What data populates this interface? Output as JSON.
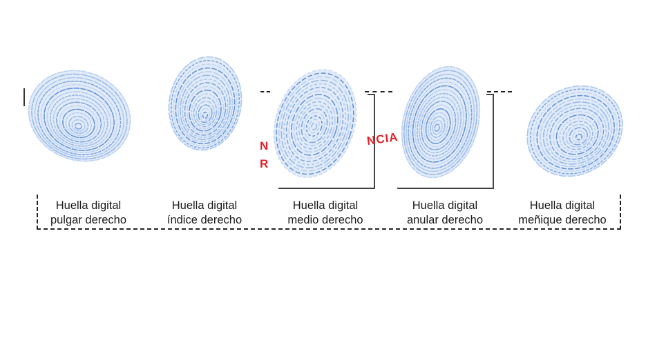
{
  "fingerprints": [
    {
      "line1": "Huella digital",
      "line2": "pulgar derecho"
    },
    {
      "line1": "Huella digital",
      "line2": "índice derecho"
    },
    {
      "line1": "Huella digital",
      "line2": "medio derecho"
    },
    {
      "line1": "Huella digital",
      "line2": "anular derecho"
    },
    {
      "line1": "Huella digital",
      "line2": "meñique derecho"
    }
  ],
  "stamp": {
    "fragment_a": "N",
    "fragment_b": "R",
    "fragment_c": "NCIA"
  },
  "colors": {
    "ridge": "#5f8fd6",
    "ridge_light": "#a9c5ee",
    "stamp": "#e0202a"
  }
}
